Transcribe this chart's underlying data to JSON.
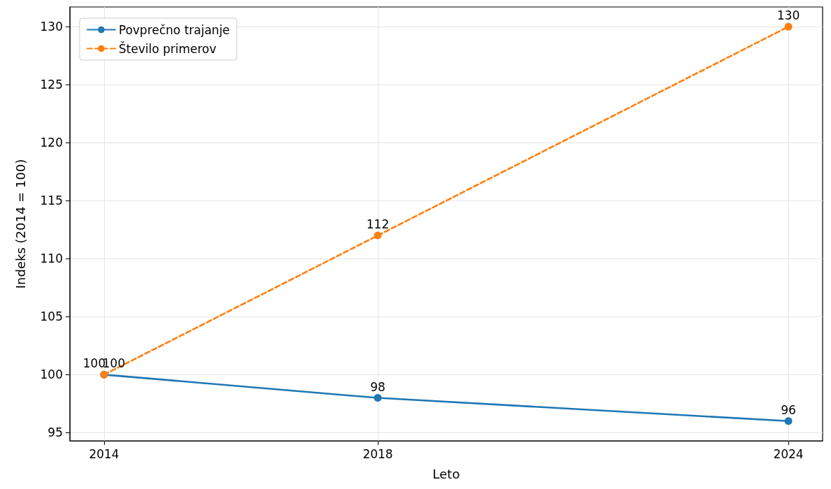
{
  "chart_data": {
    "type": "line",
    "xlabel": "Leto",
    "ylabel": "Indeks (2014 = 100)",
    "x": [
      2014,
      2018,
      2024
    ],
    "series": [
      {
        "name": "Povprečno trajanje",
        "color": "#1f77b4",
        "values": [
          100,
          98,
          96
        ],
        "line_style": "solid"
      },
      {
        "name": "Število primerov",
        "color": "#ff7f0e",
        "values": [
          100,
          112,
          130
        ],
        "line_style": "dashed"
      }
    ],
    "xlim": [
      2013.5,
      2024.5
    ],
    "xticks": [
      2014,
      2018,
      2024
    ],
    "ylim": [
      94.3,
      131.7
    ],
    "yticks": [
      95,
      100,
      105,
      110,
      115,
      120,
      125,
      130
    ],
    "grid": true,
    "legend": "top left",
    "marker": "circle",
    "data_labels": true
  }
}
